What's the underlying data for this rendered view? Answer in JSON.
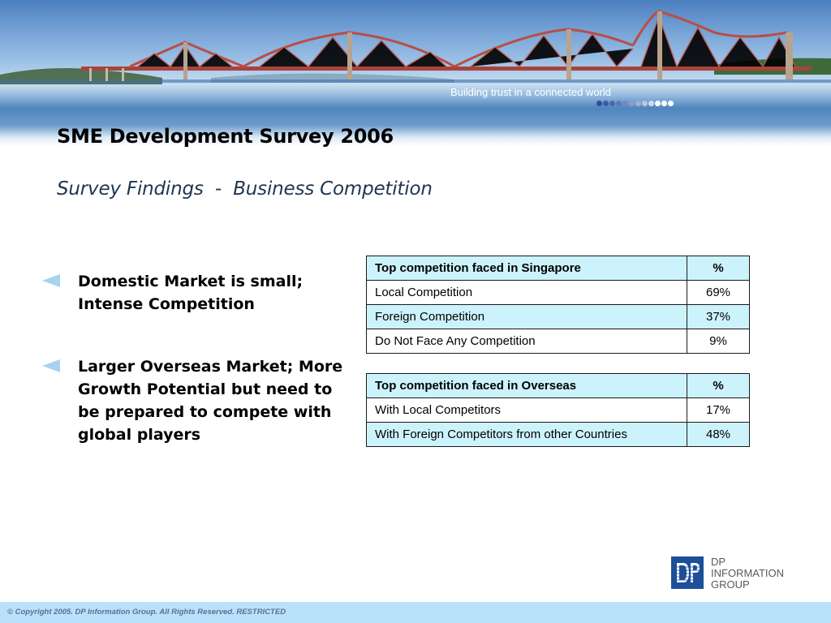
{
  "banner": {
    "tagline": "Building trust in a connected world",
    "dot_colors": [
      "#2e4f9c",
      "#3a5ba6",
      "#4a68ad",
      "#5d79b6",
      "#7389c0",
      "#8b9ccb",
      "#a3b1d6",
      "#bac6e0",
      "#d3dcec",
      "#ffffff",
      "#ffffff",
      "#ffffff"
    ]
  },
  "title": "SME Development Survey 2006",
  "subtitle": "Survey Findings  -  Business Competition",
  "bullets": [
    {
      "text": "Domestic Market is small; Intense Competition"
    },
    {
      "text": "Larger Overseas Market; More Growth Potential but need to be prepared to compete with global players"
    }
  ],
  "table_singapore": {
    "header": {
      "label": "Top competition faced in Singapore",
      "value": "%"
    },
    "rows": [
      {
        "label": "Local Competition",
        "value": "69%"
      },
      {
        "label": "Foreign Competition",
        "value": "37%"
      },
      {
        "label": "Do Not Face Any Competition",
        "value": "9%"
      }
    ]
  },
  "table_overseas": {
    "header": {
      "label": "Top competition faced in Overseas",
      "value": "%"
    },
    "rows": [
      {
        "label": "With Local Competitors",
        "value": "17%"
      },
      {
        "label": "With Foreign Competitors from other Countries",
        "value": "48%"
      }
    ]
  },
  "logo": {
    "line1": "DP",
    "line2": "INFORMATION",
    "line3": "GROUP"
  },
  "footer": {
    "copyright": "© Copyright 2005. DP Information Group. All Rights Reserved. RESTRICTED"
  }
}
